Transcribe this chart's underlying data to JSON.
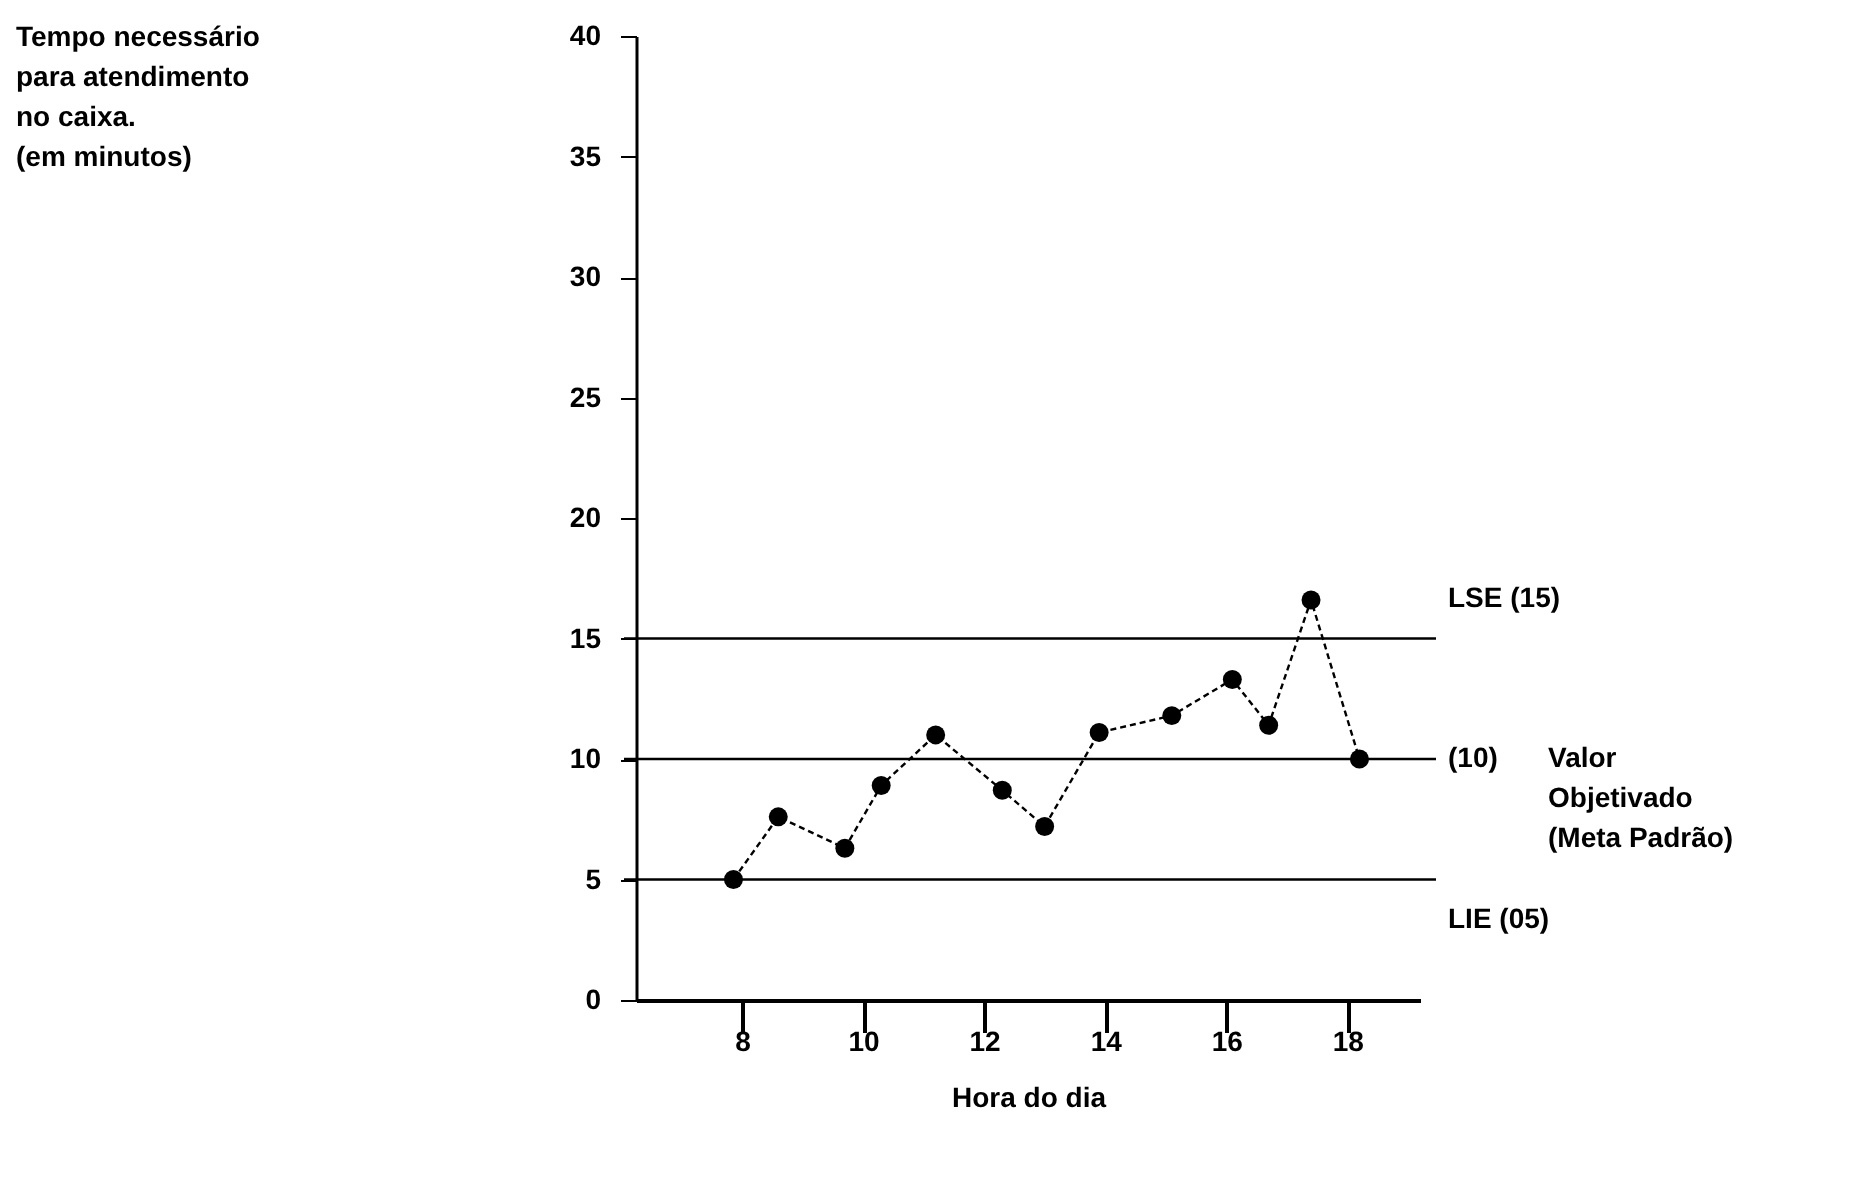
{
  "chart_data": {
    "type": "line",
    "xlabel": "Hora do dia",
    "x": [
      7.86,
      8.6,
      9.7,
      10.3,
      11.2,
      12.3,
      13.0,
      13.9,
      15.1,
      16.1,
      16.7,
      17.4,
      18.2
    ],
    "series": [
      {
        "color": "#000000",
        "values": [
          5.0,
          7.6,
          6.3,
          8.9,
          11.0,
          8.7,
          7.2,
          11.1,
          11.8,
          13.3,
          11.4,
          16.6,
          10.0
        ]
      }
    ],
    "xlim": [
      6.25,
      19.2
    ],
    "xticks": [
      8,
      10,
      12,
      14,
      16,
      18
    ],
    "ylim": [
      0,
      40
    ],
    "yticks": [
      0,
      5,
      10,
      15,
      20,
      25,
      30,
      35,
      40
    ],
    "ref_lines": [
      {
        "axis": "y",
        "value": 15,
        "label": "LSE (15)",
        "color": "#000000"
      },
      {
        "axis": "y",
        "value": 10,
        "label": "(10)",
        "color": "#000000"
      },
      {
        "axis": "y",
        "value": 5,
        "label": "LIE (05)",
        "color": "#000000"
      }
    ],
    "annotations": [
      "Tempo necessário\npara atendimento\nno caixa.\n(em minutos)",
      "Valor\nObjetivado\n(Meta Padrão)"
    ],
    "marker": "circle",
    "line_style": "dashed",
    "grid": false
  }
}
